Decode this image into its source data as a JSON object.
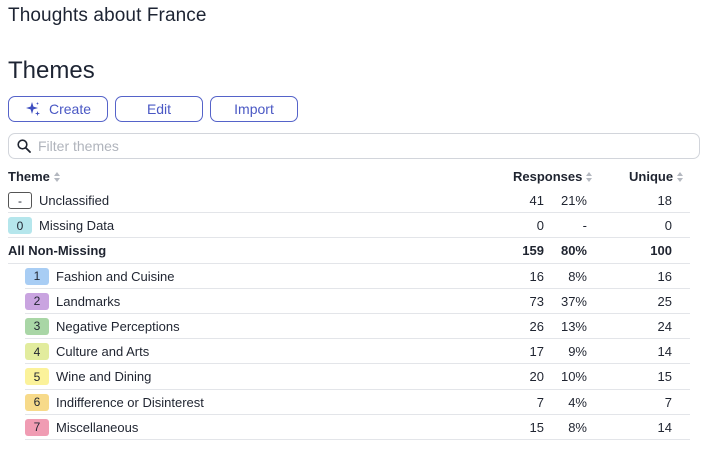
{
  "survey_title": "Thoughts about France",
  "section_title": "Themes",
  "toolbar": {
    "create_label": "Create",
    "edit_label": "Edit",
    "import_label": "Import",
    "accent": "#4a58c4"
  },
  "filter": {
    "placeholder": "Filter themes"
  },
  "table": {
    "headers": {
      "theme": "Theme",
      "responses": "Responses",
      "unique": "Unique"
    },
    "top_rows": [
      {
        "code": "-",
        "label": "Unclassified",
        "count": "41",
        "pct": "21%",
        "unique": "18",
        "badge_color": "#ffffff"
      },
      {
        "code": "0",
        "label": "Missing Data",
        "count": "0",
        "pct": "-",
        "unique": "0",
        "badge_color": "#b5e6ec"
      }
    ],
    "summary_row": {
      "label": "All Non-Missing",
      "count": "159",
      "pct": "80%",
      "unique": "100"
    },
    "themes": [
      {
        "code": "1",
        "label": "Fashion and Cuisine",
        "count": "16",
        "pct": "8%",
        "unique": "16",
        "badge_color": "#a8cdf4"
      },
      {
        "code": "2",
        "label": "Landmarks",
        "count": "73",
        "pct": "37%",
        "unique": "25",
        "badge_color": "#c9a4e0"
      },
      {
        "code": "3",
        "label": "Negative Perceptions",
        "count": "26",
        "pct": "13%",
        "unique": "24",
        "badge_color": "#a9d6a6"
      },
      {
        "code": "4",
        "label": "Culture and Arts",
        "count": "17",
        "pct": "9%",
        "unique": "14",
        "badge_color": "#e2ec9e"
      },
      {
        "code": "5",
        "label": "Wine and Dining",
        "count": "20",
        "pct": "10%",
        "unique": "15",
        "badge_color": "#fbf29a"
      },
      {
        "code": "6",
        "label": "Indifference or Disinterest",
        "count": "7",
        "pct": "4%",
        "unique": "7",
        "badge_color": "#f7da8a"
      },
      {
        "code": "7",
        "label": "Miscellaneous",
        "count": "15",
        "pct": "8%",
        "unique": "14",
        "badge_color": "#f09cb3"
      }
    ]
  }
}
